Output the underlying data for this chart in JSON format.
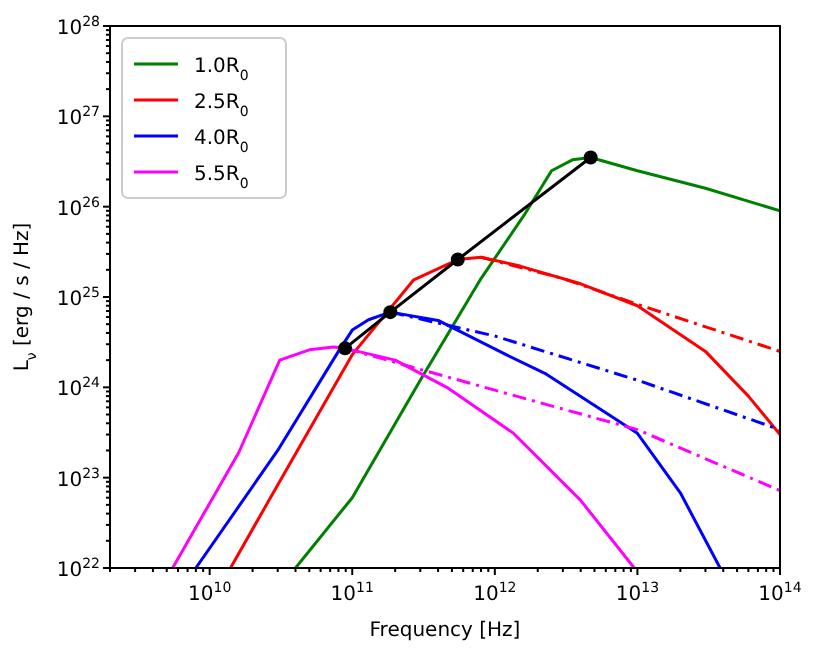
{
  "chart_data": {
    "type": "line",
    "xlabel": "Frequency [Hz]",
    "ylabel": "L$_{ν}$ [erg / s / Hz]",
    "log": "xy",
    "legend": "top left",
    "grid": false,
    "marker": "none",
    "line_style": "solid",
    "xlim": [
      2000000000.0,
      100000000000000.0
    ],
    "ylim": [
      1e+22,
      1e+28
    ],
    "xticks": [
      {
        "value": 10000000000.0,
        "label": "10$^{10}$"
      },
      {
        "value": 100000000000.0,
        "label": "10$^{11}$"
      },
      {
        "value": 1000000000000.0,
        "label": "10$^{12}$"
      },
      {
        "value": 10000000000000.0,
        "label": "10$^{13}$"
      },
      {
        "value": 100000000000000.0,
        "label": "10$^{14}$"
      }
    ],
    "yticks": [
      {
        "value": 1e+22,
        "label": "10$^{22}$"
      },
      {
        "value": 1e+23,
        "label": "10$^{23}$"
      },
      {
        "value": 1e+24,
        "label": "10$^{24}$"
      },
      {
        "value": 1e+25,
        "label": "10$^{25}$"
      },
      {
        "value": 1e+26,
        "label": "10$^{26}$"
      },
      {
        "value": 1e+27,
        "label": "10$^{27}$"
      },
      {
        "value": 1e+28,
        "label": "10$^{28}$"
      }
    ],
    "series": [
      {
        "name": "1.0R$_{0}$",
        "color": "#008000",
        "x": [
          40000000000.0,
          100000000000.0,
          300000000000.0,
          800000000000.0,
          1600000000000.0,
          2500000000000.0,
          3500000000000.0,
          4700000000000.0,
          10000000000000.0,
          30000000000000.0,
          100000000000000.0
        ],
        "values": [
          1e+22,
          6e+22,
          1.2e+24,
          1.6e+25,
          8e+25,
          2.5e+26,
          3.3e+26,
          3.5e+26,
          2.5e+26,
          1.6e+26,
          9e+25
        ]
      },
      {
        "name": "2.5R$_{0}$",
        "color": "#ff0000",
        "x": [
          14000000000.0,
          30000000000.0,
          100000000000.0,
          270000000000.0,
          550000000000.0,
          800000000000.0,
          1500000000000.0,
          4000000000000.0,
          10000000000000.0,
          30000000000000.0,
          60000000000000.0,
          100000000000000.0
        ],
        "values": [
          1e+22,
          8.3e+22,
          2.3e+24,
          1.55e+25,
          2.6e+25,
          2.75e+25,
          2.2e+25,
          1.4e+25,
          8e+24,
          2.5e+24,
          8e+23,
          3e+23
        ]
      },
      {
        "name": "4.0R$_{0}$",
        "color": "#0000ff",
        "x": [
          8000000000.0,
          30000000000.0,
          80000000000.0,
          100000000000.0,
          130000000000.0,
          185000000000.0,
          400000000000.0,
          1200000000000.0,
          2300000000000.0,
          10000000000000.0,
          20000000000000.0,
          38000000000000.0
        ],
        "values": [
          1e+22,
          2e+23,
          2.5e+24,
          4.3e+24,
          5.6e+24,
          6.8e+24,
          5.5e+24,
          2.3e+24,
          1.4e+24,
          3.1e+23,
          6.8e+22,
          1e+22
        ]
      },
      {
        "name": "5.5R$_{0}$",
        "color": "#ff00ff",
        "x": [
          5500000000.0,
          16000000000.0,
          31000000000.0,
          50000000000.0,
          74000000000.0,
          89000000000.0,
          200000000000.0,
          460000000000.0,
          1350000000000.0,
          4000000000000.0,
          9500000000000.0
        ],
        "values": [
          1e+22,
          1.9e+23,
          2e+24,
          2.6e+24,
          2.8e+24,
          2.7e+24,
          2e+24,
          1e+24,
          3.1e+23,
          5.6e+22,
          1e+22
        ]
      },
      {
        "color": "#ff0000",
        "line_style": "dashdot",
        "x": [
          800000000000.0,
          3000000000000.0,
          10000000000000.0,
          100000000000000.0
        ],
        "values": [
          2.75e+25,
          1.6e+25,
          8.3e+24,
          2.5e+24
        ]
      },
      {
        "color": "#0000ff",
        "line_style": "dashdot",
        "x": [
          185000000000.0,
          1000000000000.0,
          10000000000000.0,
          100000000000000.0
        ],
        "values": [
          6.8e+24,
          3.7e+24,
          1.2e+24,
          3.4e+23
        ]
      },
      {
        "color": "#ff00ff",
        "line_style": "dashdot",
        "x": [
          89000000000.0,
          1000000000000.0,
          10000000000000.0,
          100000000000000.0
        ],
        "values": [
          2.7e+24,
          9.3e+23,
          3.4e+23,
          7.2e+22
        ]
      },
      {
        "color": "#000000",
        "marker": "circle",
        "x": [
          89000000000.0,
          185000000000.0,
          550000000000.0,
          4700000000000.0
        ],
        "values": [
          2.7e+24,
          6.8e+24,
          2.6e+25,
          3.5e+26
        ]
      }
    ]
  }
}
